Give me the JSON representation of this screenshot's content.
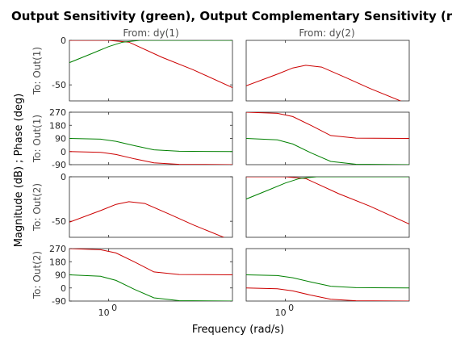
{
  "figure": {
    "title": "Output Sensitivity (green), Output Complementary Sensitivity (red)",
    "xlabel": "Frequency  (rad/s)",
    "ylabel": "Magnitude (dB) ; Phase (deg)",
    "column_labels": [
      "From: dy(1)",
      "From: dy(2)"
    ],
    "row_labels": [
      "To: Out(1)",
      "To: Out(1)",
      "To: Out(2)",
      "To: Out(2)"
    ],
    "x_tick_label": "10",
    "x_tick_exponent": "0",
    "colors": {
      "sensitivity": "#008000",
      "complementary": "#cc0000",
      "axes": "#262626"
    }
  },
  "chart_data": {
    "type": "line",
    "title": "Output Sensitivity (green), Output Complementary Sensitivity (red)",
    "xlabel": "Frequency  (rad/s)",
    "ylabel": "Magnitude (dB) ; Phase (deg)",
    "xscale": "log",
    "xlim": [
      0.6,
      5
    ],
    "x_ticks": [
      1
    ],
    "grid": false,
    "legend": "none",
    "series_note": "green = Output Sensitivity, red = Output Complementary Sensitivity",
    "panels": [
      {
        "row": 0,
        "col": 0,
        "kind": "magnitude",
        "ylim": [
          -68,
          0
        ],
        "yticks": [
          0,
          -50
        ],
        "yticklabels": [
          "0",
          "-50"
        ],
        "series": [
          {
            "color": "#cc0000",
            "x": [
              0.6,
              1.0,
              1.3,
              2.0,
              3.0,
              5.0
            ],
            "y": [
              0,
              0,
              -2,
              -19,
              -33,
              -53
            ]
          },
          {
            "color": "#008000",
            "x": [
              0.6,
              0.8,
              1.0,
              1.2,
              1.5,
              2.0,
              5.0
            ],
            "y": [
              -25,
              -15,
              -7,
              -2,
              0,
              0,
              0
            ]
          }
        ]
      },
      {
        "row": 0,
        "col": 1,
        "kind": "magnitude",
        "ylim": [
          -68,
          0
        ],
        "yticks": [],
        "yticklabels": [],
        "series": [
          {
            "color": "#cc0000",
            "x": [
              0.6,
              0.9,
              1.1,
              1.3,
              1.6,
              2.2,
              3.0,
              5.0
            ],
            "y": [
              -51,
              -38,
              -31,
              -28,
              -30,
              -42,
              -54,
              -72
            ]
          }
        ]
      },
      {
        "row": 1,
        "col": 0,
        "kind": "phase",
        "ylim": [
          -90,
          270
        ],
        "yticks": [
          270,
          180,
          90,
          0,
          -90
        ],
        "yticklabels": [
          "270",
          "180",
          "90",
          "0",
          "-90"
        ],
        "series": [
          {
            "color": "#008000",
            "x": [
              0.6,
              0.9,
              1.1,
              1.4,
              1.8,
              2.5,
              5.0
            ],
            "y": [
              90,
              85,
              70,
              40,
              12,
              2,
              0
            ]
          },
          {
            "color": "#cc0000",
            "x": [
              0.6,
              0.9,
              1.1,
              1.4,
              1.8,
              2.5,
              5.0
            ],
            "y": [
              0,
              -5,
              -20,
              -50,
              -78,
              -88,
              -90
            ]
          }
        ]
      },
      {
        "row": 1,
        "col": 1,
        "kind": "phase",
        "ylim": [
          -90,
          270
        ],
        "yticks": [],
        "yticklabels": [],
        "series": [
          {
            "color": "#cc0000",
            "x": [
              0.6,
              0.9,
              1.1,
              1.4,
              1.8,
              2.5,
              5.0
            ],
            "y": [
              270,
              262,
              240,
              178,
              110,
              92,
              90
            ]
          },
          {
            "color": "#008000",
            "x": [
              0.6,
              0.9,
              1.1,
              1.4,
              1.8,
              2.5,
              5.0
            ],
            "y": [
              90,
              80,
              52,
              -10,
              -68,
              -87,
              -90
            ]
          }
        ]
      },
      {
        "row": 2,
        "col": 0,
        "kind": "magnitude",
        "ylim": [
          -68,
          0
        ],
        "yticks": [
          0,
          -50
        ],
        "yticklabels": [
          "0",
          "-50"
        ],
        "series": [
          {
            "color": "#cc0000",
            "x": [
              0.6,
              0.9,
              1.1,
              1.3,
              1.6,
              2.2,
              3.0,
              5.0
            ],
            "y": [
              -51,
              -38,
              -31,
              -28,
              -30,
              -42,
              -54,
              -72
            ]
          }
        ]
      },
      {
        "row": 2,
        "col": 1,
        "kind": "magnitude",
        "ylim": [
          -68,
          0
        ],
        "yticks": [],
        "yticklabels": [],
        "series": [
          {
            "color": "#cc0000",
            "x": [
              0.6,
              1.0,
              1.3,
              2.0,
              3.0,
              5.0
            ],
            "y": [
              0,
              0,
              -2,
              -19,
              -33,
              -53
            ]
          },
          {
            "color": "#008000",
            "x": [
              0.6,
              0.8,
              1.0,
              1.2,
              1.5,
              2.0,
              5.0
            ],
            "y": [
              -25,
              -15,
              -7,
              -2,
              0,
              0,
              0
            ]
          }
        ]
      },
      {
        "row": 3,
        "col": 0,
        "kind": "phase",
        "ylim": [
          -90,
          270
        ],
        "yticks": [
          270,
          180,
          90,
          0,
          -90
        ],
        "yticklabels": [
          "270",
          "180",
          "90",
          "0",
          "-90"
        ],
        "series": [
          {
            "color": "#cc0000",
            "x": [
              0.6,
              0.9,
              1.1,
              1.4,
              1.8,
              2.5,
              5.0
            ],
            "y": [
              270,
              262,
              240,
              178,
              110,
              92,
              90
            ]
          },
          {
            "color": "#008000",
            "x": [
              0.6,
              0.9,
              1.1,
              1.4,
              1.8,
              2.5,
              5.0
            ],
            "y": [
              90,
              80,
              52,
              -10,
              -68,
              -87,
              -90
            ]
          }
        ]
      },
      {
        "row": 3,
        "col": 1,
        "kind": "phase",
        "ylim": [
          -90,
          270
        ],
        "yticks": [],
        "yticklabels": [],
        "series": [
          {
            "color": "#008000",
            "x": [
              0.6,
              0.9,
              1.1,
              1.4,
              1.8,
              2.5,
              5.0
            ],
            "y": [
              90,
              85,
              70,
              40,
              12,
              2,
              0
            ]
          },
          {
            "color": "#cc0000",
            "x": [
              0.6,
              0.9,
              1.1,
              1.4,
              1.8,
              2.5,
              5.0
            ],
            "y": [
              0,
              -5,
              -20,
              -50,
              -78,
              -88,
              -90
            ]
          }
        ]
      }
    ]
  }
}
